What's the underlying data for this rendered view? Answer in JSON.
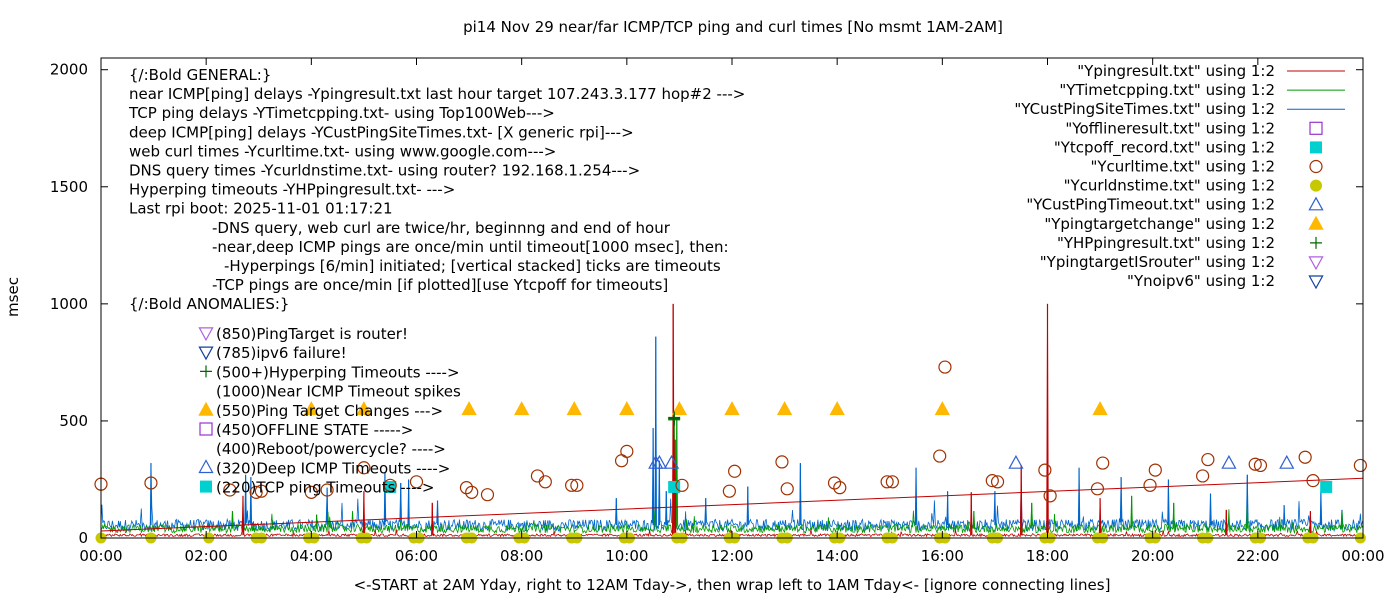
{
  "chart_data": {
    "type": "scatter",
    "title": "pi14 Nov 29  near/far ICMP/TCP ping and curl times [No msmt 1AM-2AM]",
    "ylabel": "msec",
    "xlabel": "<-START at 2AM Yday, right to 12AM Tday->, then wrap left to 1AM Tday<- [ignore connecting lines]",
    "xlim": [
      0,
      24
    ],
    "ylim": [
      0,
      2050
    ],
    "x_unit": "hours of day",
    "xticks": [
      {
        "v": 0,
        "label": "00:00"
      },
      {
        "v": 2,
        "label": "02:00"
      },
      {
        "v": 4,
        "label": "04:00"
      },
      {
        "v": 6,
        "label": "06:00"
      },
      {
        "v": 8,
        "label": "08:00"
      },
      {
        "v": 10,
        "label": "10:00"
      },
      {
        "v": 12,
        "label": "12:00"
      },
      {
        "v": 14,
        "label": "14:00"
      },
      {
        "v": 16,
        "label": "16:00"
      },
      {
        "v": 18,
        "label": "18:00"
      },
      {
        "v": 20,
        "label": "20:00"
      },
      {
        "v": 22,
        "label": "22:00"
      },
      {
        "v": 24,
        "label": "00:00"
      }
    ],
    "yticks": [
      {
        "v": 0,
        "label": "0"
      },
      {
        "v": 500,
        "label": "500"
      },
      {
        "v": 1000,
        "label": "1000"
      },
      {
        "v": 1500,
        "label": "1500"
      },
      {
        "v": 2000,
        "label": "2000"
      }
    ],
    "grid": false,
    "legend_position": "top-right",
    "legend": [
      {
        "label": "\"Ypingresult.txt\" using 1:2",
        "style": "line",
        "color": "#c00000"
      },
      {
        "label": "\"YTimetcpping.txt\" using 1:2",
        "style": "line",
        "color": "#009900"
      },
      {
        "label": "\"YCustPingSiteTimes.txt\" using 1:2",
        "style": "line",
        "color": "#0066cc"
      },
      {
        "label": "\"Yofflineresult.txt\" using 1:2",
        "style": "open-square",
        "color": "#9933cc"
      },
      {
        "label": "\"Ytcpoff_record.txt\" using 1:2",
        "style": "filled-square",
        "color": "#00d0d0"
      },
      {
        "label": "\"Ycurltime.txt\" using 1:2",
        "style": "open-circle",
        "color": "#a03000"
      },
      {
        "label": "\"Ycurldnstime.txt\" using 1:2",
        "style": "filled-circle",
        "color": "#c8c800"
      },
      {
        "label": "\"YCustPingTimeout.txt\" using 1:2",
        "style": "open-triangle-up",
        "color": "#3060d0"
      },
      {
        "label": "\"Ypingtargetchange\" using 1:2",
        "style": "filled-triangle-up",
        "color": "#ffb800"
      },
      {
        "label": "\"YHPpingresult.txt\" using 1:2",
        "style": "plus",
        "color": "#006600"
      },
      {
        "label": "\"YpingtargetISrouter\" using 1:2",
        "style": "open-triangle-down",
        "color": "#b060e0"
      },
      {
        "label": "\"Ynoipv6\" using 1:2",
        "style": "open-triangle-down",
        "color": "#1040a0"
      }
    ],
    "notes": [
      {
        "text": "{/:Bold GENERAL:}",
        "indent": 0
      },
      {
        "text": "near ICMP[ping] delays -Ypingresult.txt last hour target 107.243.3.177 hop#2 --->",
        "indent": 0
      },
      {
        "text": "TCP ping delays -YTimetcpping.txt- using Top100Web--->",
        "indent": 0
      },
      {
        "text": "deep ICMP[ping] delays -YCustPingSiteTimes.txt- [X generic rpi]--->",
        "indent": 0
      },
      {
        "text": "web curl times -Ycurltime.txt- using www.google.com--->",
        "indent": 0
      },
      {
        "text": "DNS query times -Ycurldnstime.txt- using router? 192.168.1.254--->",
        "indent": 0
      },
      {
        "text": "Hyperping timeouts -YHPpingresult.txt- --->",
        "indent": 0
      },
      {
        "text": "Last rpi boot: 2025-11-01 01:17:21",
        "indent": 0
      },
      {
        "text": "-DNS query, web curl are twice/hr, beginnng and end of hour",
        "indent": 1
      },
      {
        "text": "-near,deep ICMP pings are once/min until timeout[1000 msec], then:",
        "indent": 1
      },
      {
        "text": "-Hyperpings [6/min] initiated; [vertical stacked] ticks are timeouts",
        "indent": 2
      },
      {
        "text": "-TCP pings are once/min [if plotted][use Ytcpoff for timeouts]",
        "indent": 1
      },
      {
        "text": "{/:Bold ANOMALIES:}",
        "indent": 0
      }
    ],
    "anomalies": [
      {
        "text": "(850)PingTarget is router!",
        "marker": "open-triangle-down",
        "color": "#b060e0"
      },
      {
        "text": "(785)ipv6 failure!",
        "marker": "open-triangle-down",
        "color": "#1040a0"
      },
      {
        "text": "(500+)Hyperping Timeouts ---->",
        "marker": "plus",
        "color": "#006600"
      },
      {
        "text": "(1000)Near ICMP Timeout spikes",
        "marker": "none",
        "color": "#000000"
      },
      {
        "text": "(550)Ping Target Changes --->",
        "marker": "filled-triangle-up",
        "color": "#ffb800"
      },
      {
        "text": "(450)OFFLINE STATE ----->",
        "marker": "open-square",
        "color": "#9933cc"
      },
      {
        "text": "(400)Reboot/powercycle? ---->",
        "marker": "none",
        "color": "#000000"
      },
      {
        "text": "(320)Deep ICMP Timeouts ---->",
        "marker": "open-triangle-up",
        "color": "#3060d0"
      },
      {
        "text": "(220)TCP ping Timeouts ---->",
        "marker": "filled-square",
        "color": "#00d0d0"
      }
    ],
    "series": [
      {
        "name": "\"Ypingresult.txt\" using 1:2",
        "style": "line",
        "color": "#c00000",
        "baseline": 12,
        "trend": {
          "x": [
            0,
            24
          ],
          "y": [
            30,
            255
          ]
        },
        "spikes": [
          [
            2.7,
            180
          ],
          [
            5.0,
            200
          ],
          [
            6.3,
            150
          ],
          [
            10.88,
            1000
          ],
          [
            10.92,
            420
          ],
          [
            16.55,
            195
          ],
          [
            17.5,
            310
          ],
          [
            18.0,
            1000
          ],
          [
            19.0,
            170
          ],
          [
            21.4,
            120
          ],
          [
            23.0,
            115
          ]
        ],
        "note": "dense once/min trace; baseline ~10-25 msec, rising connecting line from 00:00 to 24:00"
      },
      {
        "name": "\"YTimetcpping.txt\" using 1:2",
        "style": "line",
        "color": "#009900",
        "baseline": 40,
        "spikes": [
          [
            2.5,
            115
          ],
          [
            4.1,
            100
          ],
          [
            10.9,
            500
          ],
          [
            10.95,
            510
          ],
          [
            16.6,
            115
          ],
          [
            17.7,
            150
          ],
          [
            19.6,
            180
          ],
          [
            20.4,
            150
          ],
          [
            21.8,
            130
          ],
          [
            23.6,
            110
          ]
        ],
        "note": "dense trace mostly 20-80 msec"
      },
      {
        "name": "\"YCustPingSiteTimes.txt\" using 1:2",
        "style": "line",
        "color": "#0066cc",
        "baseline": 55,
        "spikes": [
          [
            0.95,
            320
          ],
          [
            2.75,
            270
          ],
          [
            2.85,
            260
          ],
          [
            4.3,
            215
          ],
          [
            5.4,
            280
          ],
          [
            5.7,
            235
          ],
          [
            5.85,
            250
          ],
          [
            6.4,
            160
          ],
          [
            9.8,
            170
          ],
          [
            10.5,
            470
          ],
          [
            10.55,
            860
          ],
          [
            10.62,
            330
          ],
          [
            10.75,
            200
          ],
          [
            11.5,
            170
          ],
          [
            12.3,
            220
          ],
          [
            13.3,
            320
          ],
          [
            15.5,
            300
          ],
          [
            16.1,
            200
          ],
          [
            17.0,
            200
          ],
          [
            17.5,
            230
          ],
          [
            18.6,
            300
          ],
          [
            19.4,
            260
          ],
          [
            20.3,
            250
          ],
          [
            21.1,
            190
          ],
          [
            21.8,
            270
          ],
          [
            22.5,
            140
          ],
          [
            23.2,
            200
          ],
          [
            23.6,
            120
          ]
        ],
        "note": "dense trace mostly 20-100 msec"
      },
      {
        "name": "\"Ytcpoff_record.txt\" using 1:2",
        "style": "filled-square",
        "color": "#00d0d0",
        "x": [
          5.5,
          10.9,
          23.3
        ],
        "y": [
          218,
          218,
          218
        ]
      },
      {
        "name": "\"Ycurltime.txt\" using 1:2",
        "style": "open-circle",
        "color": "#a03000",
        "x": [
          0.0,
          0.95,
          2.45,
          2.95,
          3.05,
          4.0,
          4.3,
          5.0,
          5.5,
          6.0,
          6.95,
          7.05,
          7.35,
          8.3,
          8.45,
          8.95,
          9.05,
          9.9,
          10.0,
          11.05,
          11.95,
          12.05,
          12.95,
          13.05,
          13.95,
          14.05,
          14.95,
          15.05,
          15.95,
          16.05,
          16.95,
          17.05,
          17.95,
          18.05,
          18.95,
          19.05,
          19.95,
          20.05,
          20.95,
          21.05,
          21.95,
          22.05,
          22.9,
          23.05,
          23.95
        ],
        "y": [
          230,
          235,
          205,
          195,
          200,
          195,
          205,
          300,
          225,
          240,
          215,
          195,
          185,
          265,
          240,
          225,
          225,
          330,
          370,
          225,
          200,
          285,
          325,
          210,
          235,
          215,
          240,
          240,
          350,
          730,
          245,
          240,
          290,
          180,
          210,
          320,
          225,
          290,
          265,
          335,
          315,
          310,
          345,
          245,
          310
        ]
      },
      {
        "name": "\"Ycurldnstime.txt\" using 1:2",
        "style": "filled-circle",
        "color": "#c8c800",
        "x": [
          0.0,
          0.95,
          2.05,
          2.95,
          3.05,
          3.95,
          4.05,
          4.95,
          5.05,
          5.95,
          6.05,
          6.95,
          7.05,
          7.95,
          8.05,
          8.95,
          9.05,
          9.95,
          10.05,
          10.95,
          11.05,
          11.95,
          12.05,
          12.95,
          13.05,
          13.95,
          14.05,
          14.95,
          15.05,
          15.95,
          16.05,
          16.95,
          17.05,
          17.95,
          18.05,
          18.95,
          19.05,
          19.95,
          20.05,
          20.95,
          21.05,
          21.95,
          22.05,
          22.95,
          23.05,
          23.95
        ],
        "y": [
          0,
          0,
          0,
          0,
          0,
          0,
          0,
          0,
          0,
          0,
          0,
          0,
          0,
          0,
          0,
          0,
          0,
          0,
          0,
          0,
          0,
          0,
          0,
          0,
          0,
          0,
          0,
          0,
          0,
          0,
          0,
          0,
          0,
          0,
          0,
          0,
          0,
          0,
          0,
          0,
          0,
          0,
          0,
          0,
          0,
          0
        ]
      },
      {
        "name": "\"YCustPingTimeout.txt\" using 1:2",
        "style": "open-triangle-up",
        "color": "#3060d0",
        "x": [
          10.55,
          10.62,
          10.85,
          17.4,
          21.45,
          22.55
        ],
        "y": [
          320,
          320,
          320,
          320,
          320,
          320
        ]
      },
      {
        "name": "\"Ypingtargetchange\" using 1:2",
        "style": "filled-triangle-up",
        "color": "#ffb800",
        "x": [
          4.0,
          5.0,
          7.0,
          8.0,
          9.0,
          10.0,
          11.0,
          12.0,
          13.0,
          14.0,
          16.0,
          19.0
        ],
        "y": [
          550,
          550,
          550,
          550,
          550,
          550,
          550,
          550,
          550,
          550,
          550,
          550
        ]
      },
      {
        "name": "\"YHPpingresult.txt\" using 1:2",
        "style": "plus",
        "color": "#006600",
        "x": [
          10.9,
          10.9,
          10.9
        ],
        "y": [
          505,
          510,
          515
        ]
      }
    ]
  }
}
